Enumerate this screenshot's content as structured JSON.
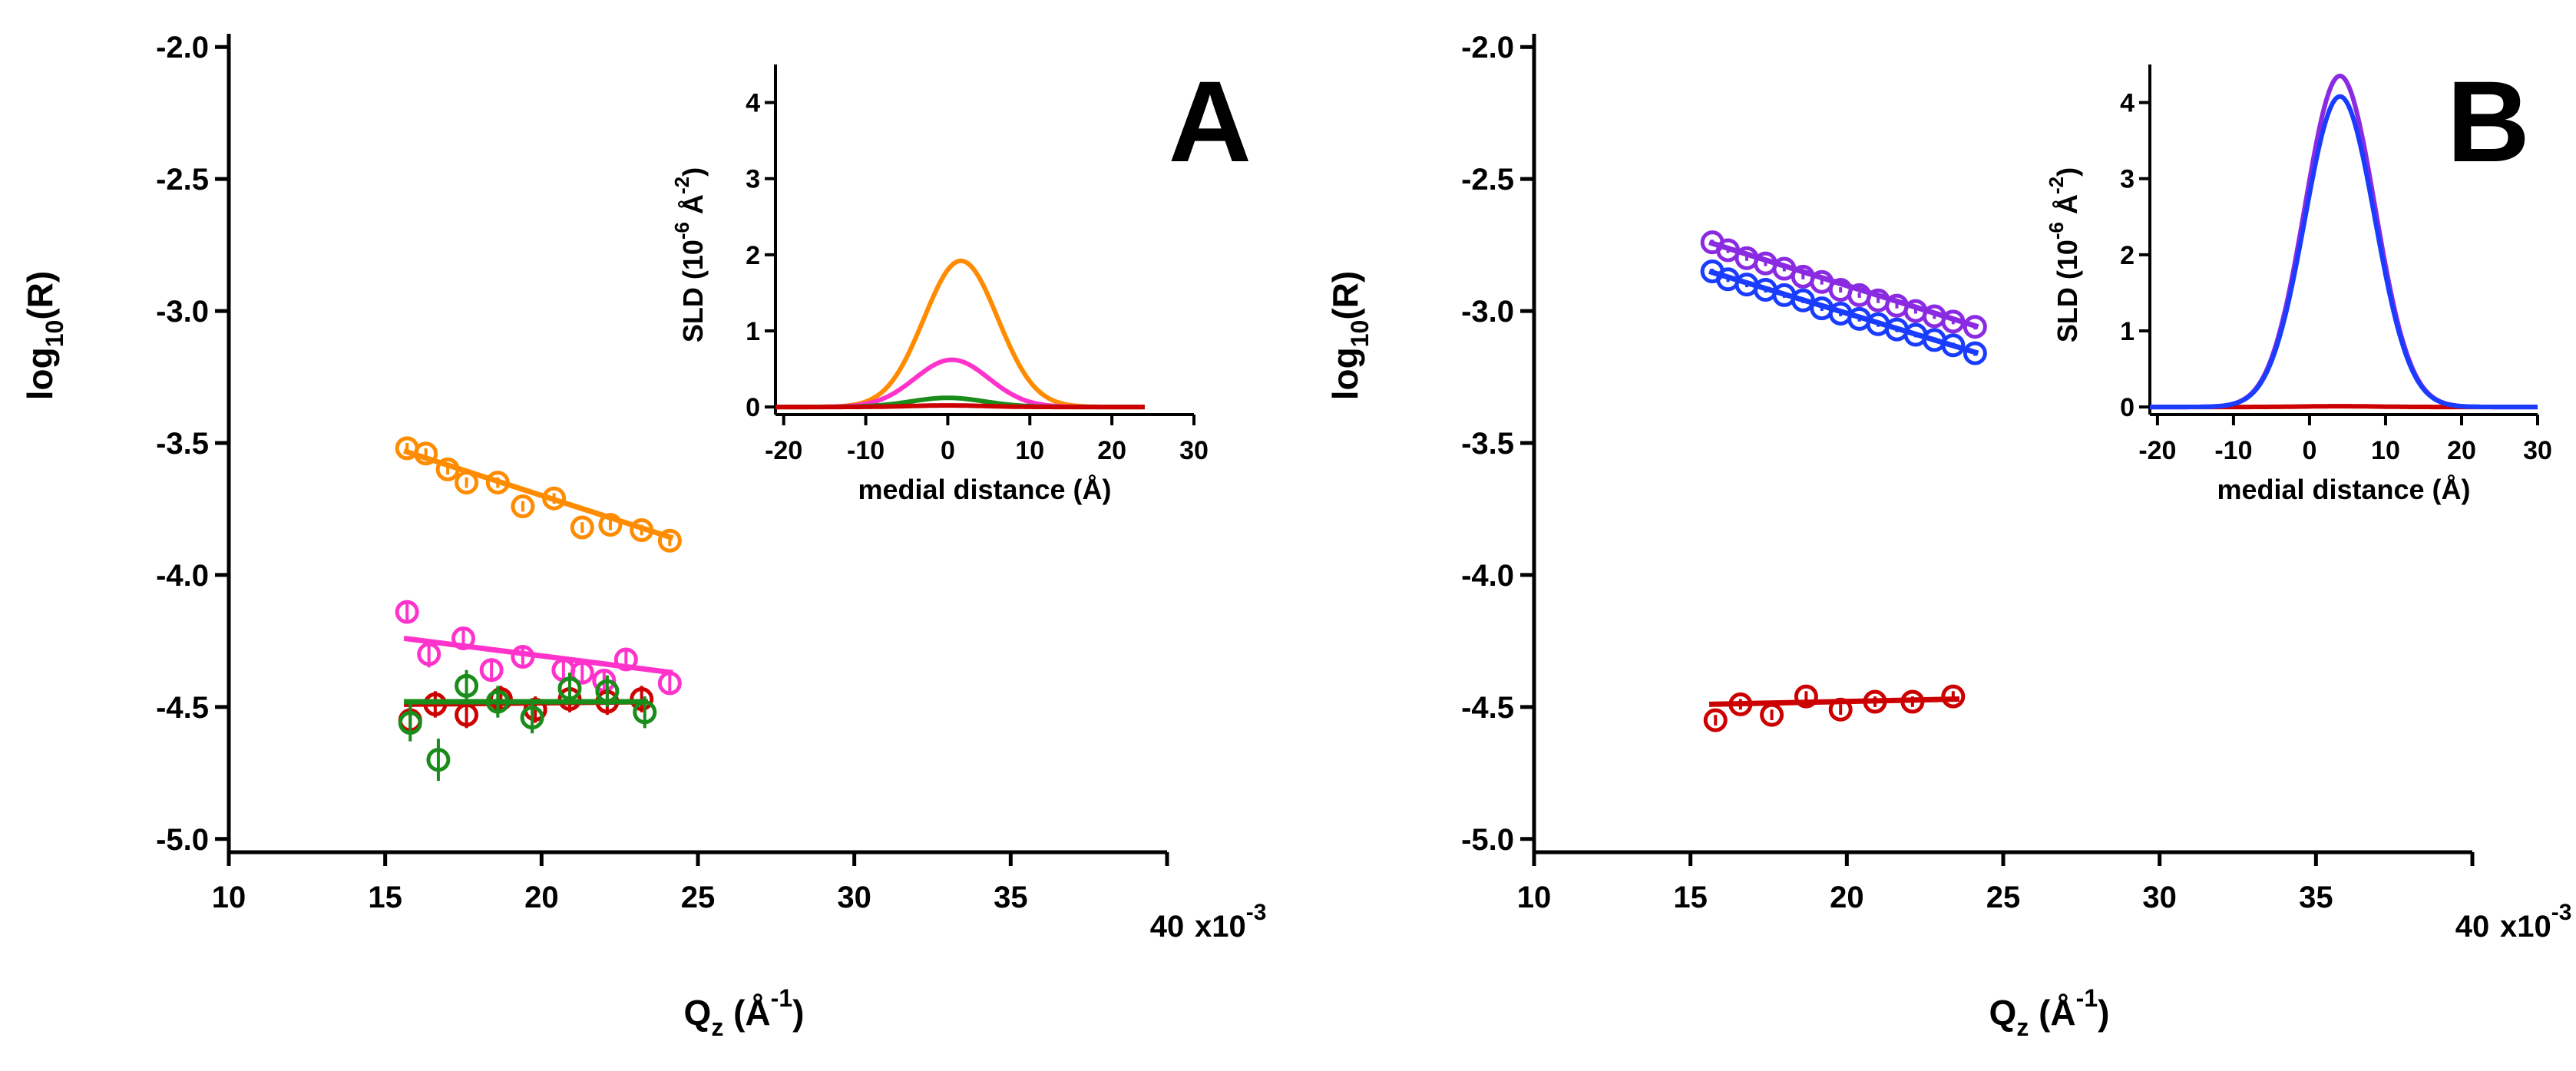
{
  "chart_data": [
    {
      "id": "A",
      "type": "scatter",
      "panel_label": "A",
      "xlabel": "Q",
      "xlabel_sub": "z",
      "xlabel_unit_base": "(Å",
      "xlabel_unit_sup": "-1",
      "xlabel_close": ")",
      "x_multiplier": "x10",
      "x_multiplier_exp": "-3",
      "ylabel_base": "log",
      "ylabel_sub": "10",
      "ylabel_rest": "(R)",
      "xlim": [
        10,
        40
      ],
      "ylim": [
        -5.05,
        -1.95
      ],
      "xticks": [
        10,
        15,
        20,
        25,
        30,
        35,
        40
      ],
      "xtick_labels": [
        "10",
        "15",
        "20",
        "25",
        "30",
        "35",
        "40"
      ],
      "yticks": [
        -5.0,
        -4.5,
        -4.0,
        -3.5,
        -3.0,
        -2.5,
        -2.0
      ],
      "ytick_labels": [
        "-5.0",
        "-4.5",
        "-4.0",
        "-3.5",
        "-3.0",
        "-2.5",
        "-2.0"
      ],
      "series": [
        {
          "name": "orange",
          "color": "#ff8c00",
          "x": [
            15.7,
            16.3,
            17.0,
            17.6,
            18.6,
            19.4,
            20.4,
            21.3,
            22.2,
            23.2,
            24.1
          ],
          "y": [
            -3.52,
            -3.54,
            -3.6,
            -3.65,
            -3.65,
            -3.74,
            -3.71,
            -3.82,
            -3.81,
            -3.83,
            -3.87
          ],
          "err": [
            0.02,
            0.02,
            0.02,
            0.02,
            0.02,
            0.02,
            0.02,
            0.02,
            0.02,
            0.02,
            0.02
          ],
          "fit_x": [
            15.6,
            24.2
          ],
          "fit_y": [
            -3.53,
            -3.86
          ]
        },
        {
          "name": "magenta",
          "color": "#ff33cc",
          "x": [
            15.7,
            16.4,
            17.5,
            18.4,
            19.4,
            20.7,
            21.3,
            22.0,
            22.7,
            24.1
          ],
          "y": [
            -4.14,
            -4.3,
            -4.24,
            -4.36,
            -4.31,
            -4.36,
            -4.37,
            -4.4,
            -4.32,
            -4.41
          ],
          "err": [
            0.04,
            0.05,
            0.04,
            0.04,
            0.04,
            0.05,
            0.04,
            0.04,
            0.04,
            0.04
          ],
          "fit_x": [
            15.6,
            24.2
          ],
          "fit_y": [
            -4.24,
            -4.37
          ]
        },
        {
          "name": "red",
          "color": "#cc0000",
          "x": [
            15.8,
            16.6,
            17.6,
            18.7,
            19.8,
            20.9,
            22.1,
            23.2
          ],
          "y": [
            -4.55,
            -4.49,
            -4.53,
            -4.47,
            -4.51,
            -4.47,
            -4.48,
            -4.47
          ],
          "err": [
            0.05,
            0.05,
            0.05,
            0.05,
            0.05,
            0.05,
            0.05,
            0.05
          ],
          "fit_x": [
            15.6,
            23.4
          ],
          "fit_y": [
            -4.49,
            -4.48
          ]
        },
        {
          "name": "green",
          "color": "#1a8c1a",
          "x": [
            15.8,
            16.7,
            17.6,
            18.6,
            19.7,
            20.9,
            22.1,
            23.3
          ],
          "y": [
            -4.56,
            -4.7,
            -4.42,
            -4.48,
            -4.54,
            -4.43,
            -4.44,
            -4.52
          ],
          "err": [
            0.07,
            0.08,
            0.06,
            0.06,
            0.06,
            0.06,
            0.06,
            0.06
          ],
          "fit_x": [
            15.6,
            23.4
          ],
          "fit_y": [
            -4.48,
            -4.48
          ]
        }
      ],
      "inset": {
        "type": "line",
        "xlabel": "medial distance (Å)",
        "ylabel_base": "SLD (10",
        "ylabel_sup1": "-6",
        "ylabel_mid": " Å",
        "ylabel_sup2": "-2",
        "ylabel_close": ")",
        "xlim": [
          -21,
          30
        ],
        "ylim": [
          -0.1,
          4.5
        ],
        "xticks": [
          -20,
          -10,
          0,
          10,
          20,
          30
        ],
        "xtick_labels": [
          "-20",
          "-10",
          "0",
          "10",
          "20",
          "30"
        ],
        "yticks": [
          0,
          1,
          2,
          3,
          4
        ],
        "ytick_labels": [
          "0",
          "1",
          "2",
          "3",
          "4"
        ],
        "series": [
          {
            "name": "orange",
            "color": "#ff8c00",
            "shape": "gaussian",
            "amplitude": 1.92,
            "center": 1.6,
            "sigma": 4.5,
            "x_range": [
              -21,
              24
            ]
          },
          {
            "name": "magenta",
            "color": "#ff33cc",
            "shape": "gaussian",
            "amplitude": 0.62,
            "center": 0.5,
            "sigma": 4.5,
            "x_range": [
              -21,
              24
            ]
          },
          {
            "name": "green",
            "color": "#1a8c1a",
            "shape": "gaussian",
            "amplitude": 0.12,
            "center": 0.0,
            "sigma": 4.5,
            "x_range": [
              -21,
              24
            ]
          },
          {
            "name": "red",
            "color": "#cc0000",
            "shape": "gaussian",
            "amplitude": 0.02,
            "center": 0.0,
            "sigma": 4.5,
            "x_range": [
              -21,
              24
            ]
          }
        ]
      }
    },
    {
      "id": "B",
      "type": "scatter",
      "panel_label": "B",
      "xlabel": "Q",
      "xlabel_sub": "z",
      "xlabel_unit_base": "(Å",
      "xlabel_unit_sup": "-1",
      "xlabel_close": ")",
      "x_multiplier": "x10",
      "x_multiplier_exp": "-3",
      "ylabel_base": "log",
      "ylabel_sub": "10",
      "ylabel_rest": "(R)",
      "xlim": [
        10,
        40
      ],
      "ylim": [
        -5.05,
        -1.95
      ],
      "xticks": [
        10,
        15,
        20,
        25,
        30,
        35,
        40
      ],
      "xtick_labels": [
        "10",
        "15",
        "20",
        "25",
        "30",
        "35",
        "40"
      ],
      "yticks": [
        -5.0,
        -4.5,
        -4.0,
        -3.5,
        -3.0,
        -2.5,
        -2.0
      ],
      "ytick_labels": [
        "-5.0",
        "-4.5",
        "-4.0",
        "-3.5",
        "-3.0",
        "-2.5",
        "-2.0"
      ],
      "series": [
        {
          "name": "purple",
          "color": "#8a2be2",
          "x": [
            15.7,
            16.2,
            16.8,
            17.4,
            18.0,
            18.6,
            19.2,
            19.8,
            20.4,
            21.0,
            21.6,
            22.2,
            22.8,
            23.4,
            24.1
          ],
          "y": [
            -2.74,
            -2.77,
            -2.8,
            -2.82,
            -2.84,
            -2.87,
            -2.89,
            -2.92,
            -2.94,
            -2.96,
            -2.98,
            -3.0,
            -3.02,
            -3.04,
            -3.06
          ],
          "err": [
            0.01,
            0.01,
            0.01,
            0.01,
            0.01,
            0.01,
            0.01,
            0.01,
            0.01,
            0.01,
            0.01,
            0.01,
            0.01,
            0.01,
            0.01
          ],
          "fit_x": [
            15.6,
            24.2
          ],
          "fit_y": [
            -2.74,
            -3.06
          ]
        },
        {
          "name": "blue",
          "color": "#1a3cff",
          "x": [
            15.7,
            16.2,
            16.8,
            17.4,
            18.0,
            18.6,
            19.2,
            19.8,
            20.4,
            21.0,
            21.6,
            22.2,
            22.8,
            23.4,
            24.1
          ],
          "y": [
            -2.85,
            -2.88,
            -2.9,
            -2.92,
            -2.94,
            -2.96,
            -2.99,
            -3.01,
            -3.03,
            -3.05,
            -3.07,
            -3.09,
            -3.11,
            -3.13,
            -3.16
          ],
          "err": [
            0.01,
            0.01,
            0.01,
            0.01,
            0.01,
            0.01,
            0.01,
            0.01,
            0.01,
            0.01,
            0.01,
            0.01,
            0.01,
            0.01,
            0.01
          ],
          "fit_x": [
            15.6,
            24.2
          ],
          "fit_y": [
            -2.85,
            -3.16
          ]
        },
        {
          "name": "red",
          "color": "#cc0000",
          "x": [
            15.8,
            16.6,
            17.6,
            18.7,
            19.8,
            20.9,
            22.1,
            23.4
          ],
          "y": [
            -4.55,
            -4.49,
            -4.53,
            -4.46,
            -4.51,
            -4.48,
            -4.48,
            -4.46
          ],
          "err": [
            0.02,
            0.02,
            0.02,
            0.02,
            0.02,
            0.02,
            0.02,
            0.02
          ],
          "fit_x": [
            15.6,
            23.6
          ],
          "fit_y": [
            -4.49,
            -4.47
          ]
        }
      ],
      "inset": {
        "type": "line",
        "xlabel": "medial distance (Å)",
        "ylabel_base": "SLD (10",
        "ylabel_sup1": "-6",
        "ylabel_mid": " Å",
        "ylabel_sup2": "-2",
        "ylabel_close": ")",
        "xlim": [
          -21,
          30
        ],
        "ylim": [
          -0.1,
          4.5
        ],
        "xticks": [
          -20,
          -10,
          0,
          10,
          20,
          30
        ],
        "xtick_labels": [
          "-20",
          "-10",
          "0",
          "10",
          "20",
          "30"
        ],
        "yticks": [
          0,
          1,
          2,
          3,
          4
        ],
        "ytick_labels": [
          "0",
          "1",
          "2",
          "3",
          "4"
        ],
        "series": [
          {
            "name": "red",
            "color": "#cc0000",
            "shape": "gaussian",
            "amplitude": 0.01,
            "center": 4.0,
            "sigma": 4.6,
            "x_range": [
              -21,
              30
            ]
          },
          {
            "name": "purple",
            "color": "#8a2be2",
            "shape": "gaussian",
            "amplitude": 4.35,
            "center": 4.0,
            "sigma": 4.6,
            "x_range": [
              -21,
              30
            ]
          },
          {
            "name": "blue",
            "color": "#1a3cff",
            "shape": "gaussian",
            "amplitude": 4.08,
            "center": 4.0,
            "sigma": 4.6,
            "x_range": [
              -21,
              30
            ]
          }
        ]
      }
    }
  ]
}
